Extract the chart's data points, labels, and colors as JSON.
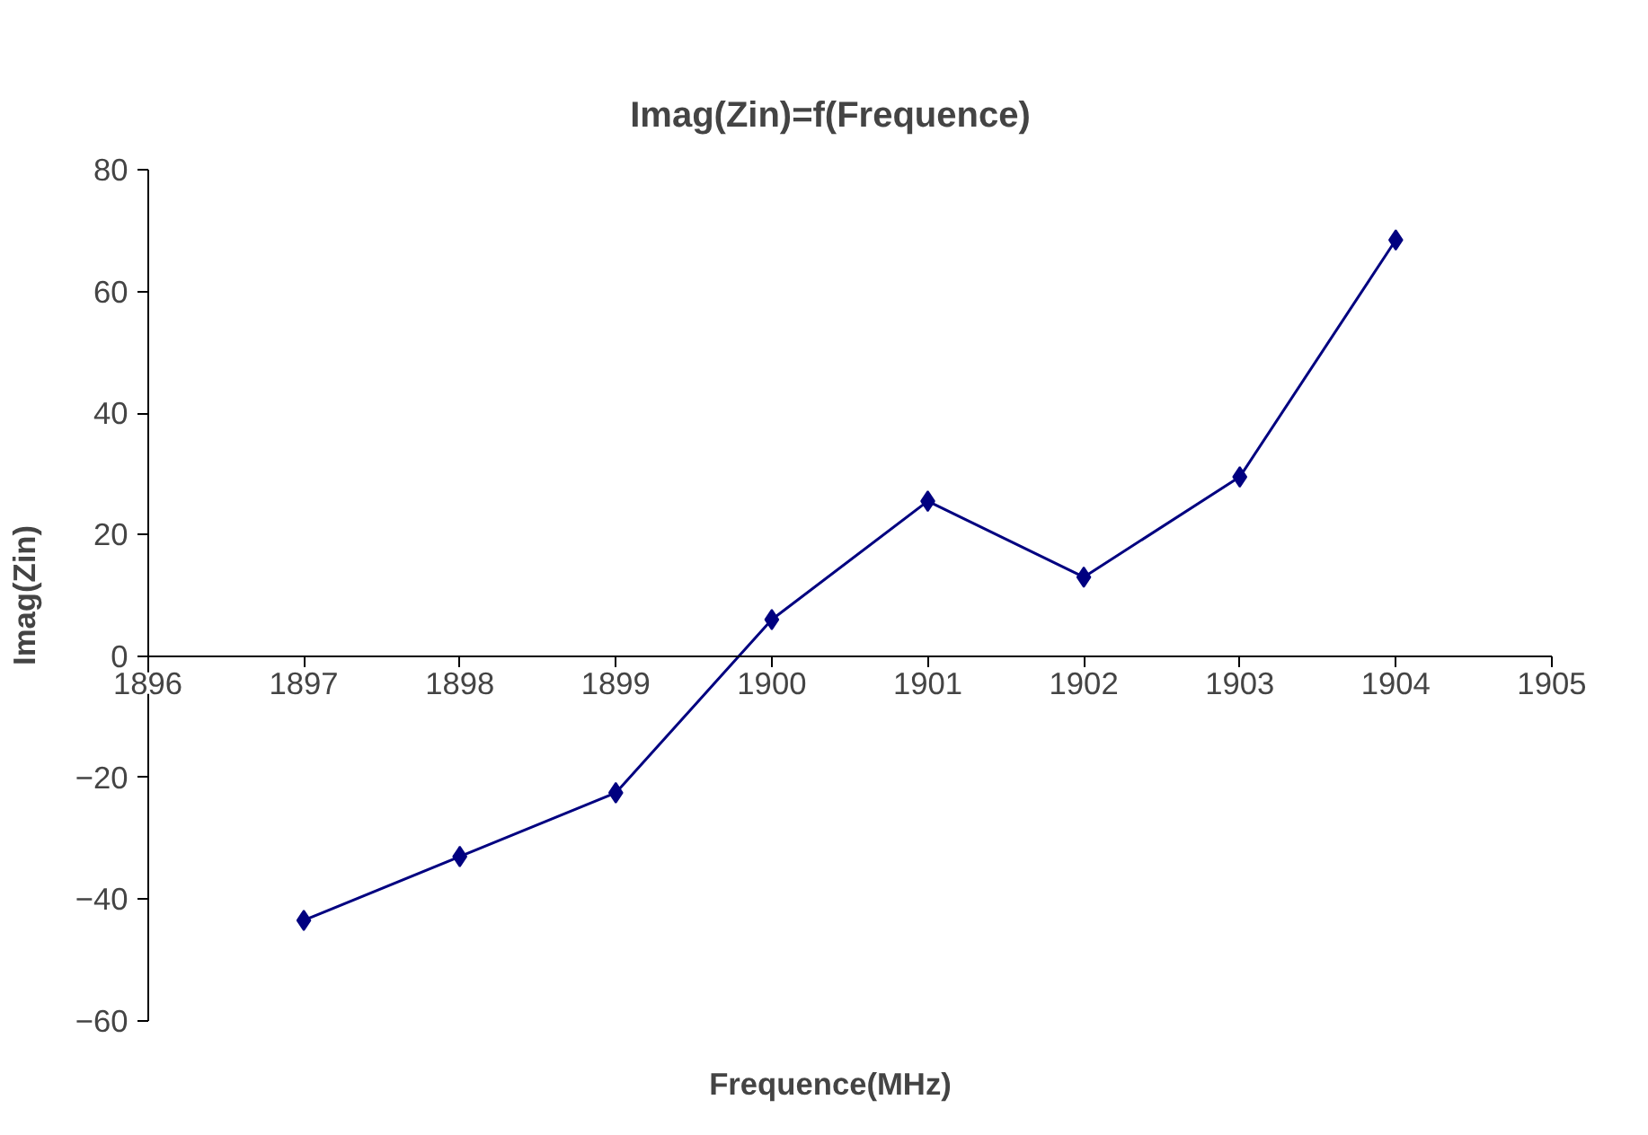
{
  "chart_data": {
    "type": "line",
    "title": "Imag(Zin)=f(Frequence)",
    "xlabel": "Frequence(MHz)",
    "ylabel": "Imag(Zin)",
    "x": [
      1897,
      1898,
      1899,
      1900,
      1901,
      1902,
      1903,
      1904
    ],
    "series": [
      {
        "color": "#000080",
        "values": [
          -43.5,
          -33,
          -22.5,
          6,
          25.5,
          13,
          29.5,
          68.5
        ]
      }
    ],
    "xlim": [
      1896,
      1905
    ],
    "xticks": [
      1896,
      1897,
      1898,
      1899,
      1900,
      1901,
      1902,
      1903,
      1904,
      1905
    ],
    "ylim": [
      -60,
      80
    ],
    "yticks": [
      -60,
      -40,
      -20,
      0,
      20,
      40,
      60,
      80
    ],
    "grid": false,
    "marker": "diamond",
    "line_style": "solid"
  }
}
